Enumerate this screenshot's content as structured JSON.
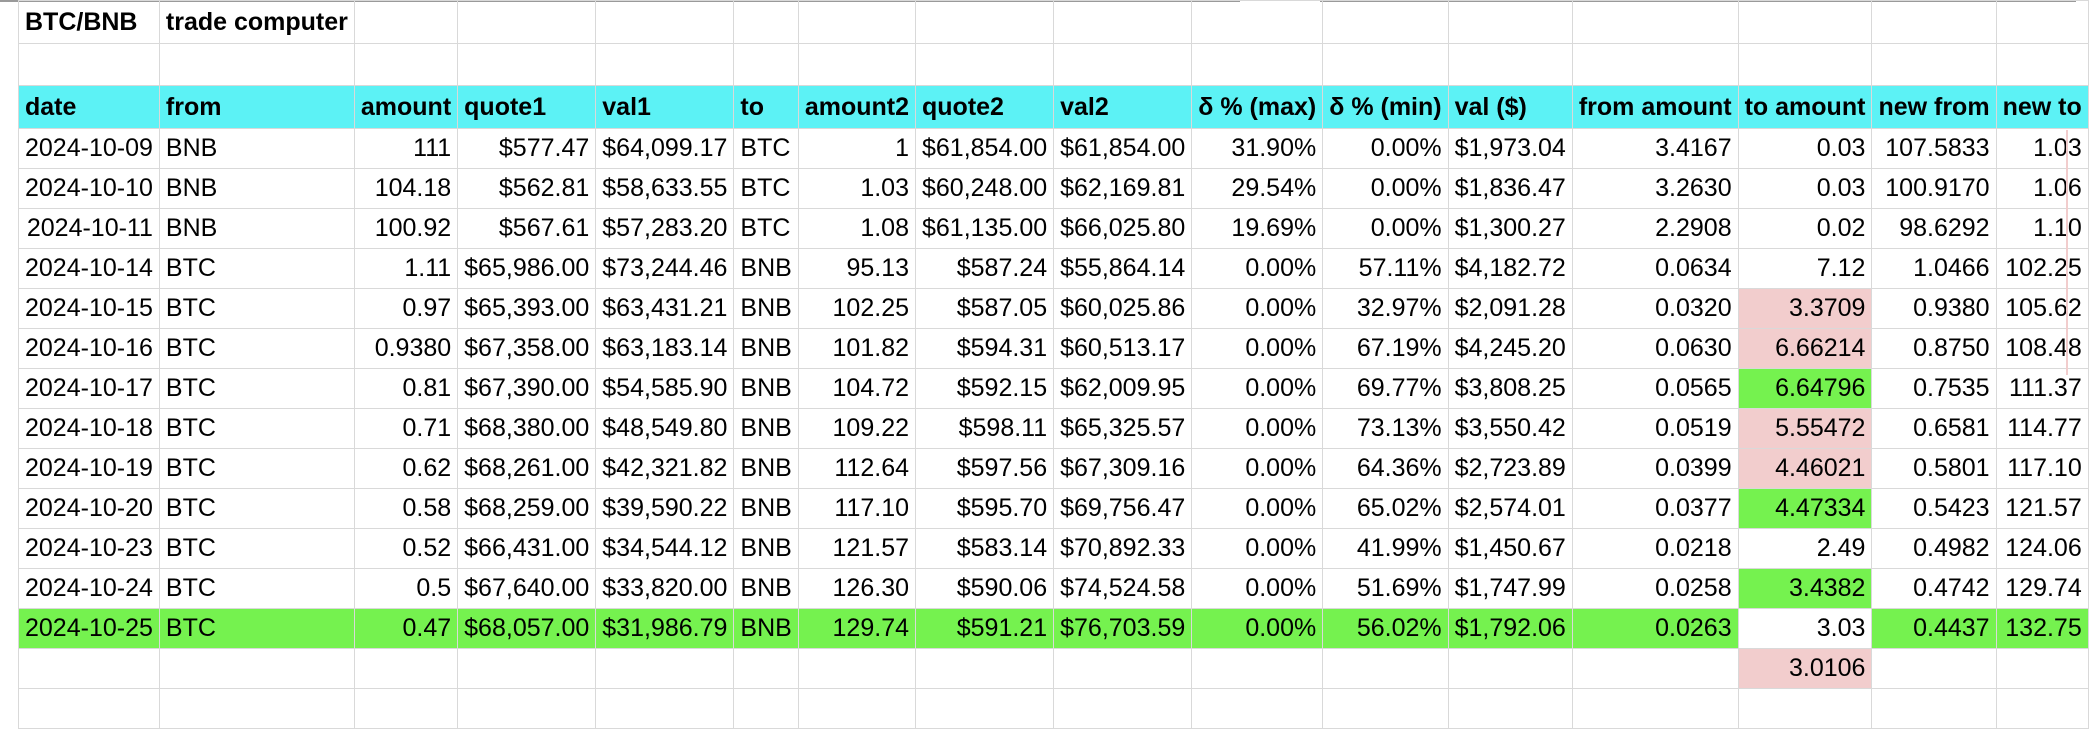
{
  "sheet": {
    "title_cells": [
      "BTC/BNB",
      "trade computer"
    ],
    "columns": [
      "date",
      "from",
      "amount",
      "quote1",
      "val1",
      "to",
      "amount2",
      "quote2",
      "val2",
      "δ % (max)",
      "δ % (min)",
      "val ($)",
      "from amount",
      "to amount",
      "new from",
      "new to"
    ],
    "rows": [
      [
        "2024-10-09",
        "BNB",
        "111",
        "$577.47",
        "$64,099.17",
        "BTC",
        "1",
        "$61,854.00",
        "$61,854.00",
        "31.90%",
        "0.00%",
        "$1,973.04",
        "3.4167",
        "0.03",
        "107.5833",
        "1.03"
      ],
      [
        "2024-10-10",
        "BNB",
        "104.18",
        "$562.81",
        "$58,633.55",
        "BTC",
        "1.03",
        "$60,248.00",
        "$62,169.81",
        "29.54%",
        "0.00%",
        "$1,836.47",
        "3.2630",
        "0.03",
        "100.9170",
        "1.06"
      ],
      [
        "2024-10-11",
        "BNB",
        "100.92",
        "$567.61",
        "$57,283.20",
        "BTC",
        "1.08",
        "$61,135.00",
        "$66,025.80",
        "19.69%",
        "0.00%",
        "$1,300.27",
        "2.2908",
        "0.02",
        "98.6292",
        "1.10"
      ],
      [
        "2024-10-14",
        "BTC",
        "1.11",
        "$65,986.00",
        "$73,244.46",
        "BNB",
        "95.13",
        "$587.24",
        "$55,864.14",
        "0.00%",
        "57.11%",
        "$4,182.72",
        "0.0634",
        "7.12",
        "1.0466",
        "102.25"
      ],
      [
        "2024-10-15",
        "BTC",
        "0.97",
        "$65,393.00",
        "$63,431.21",
        "BNB",
        "102.25",
        "$587.05",
        "$60,025.86",
        "0.00%",
        "32.97%",
        "$2,091.28",
        "0.0320",
        "3.3709",
        "0.9380",
        "105.62"
      ],
      [
        "2024-10-16",
        "BTC",
        "0.9380",
        "$67,358.00",
        "$63,183.14",
        "BNB",
        "101.82",
        "$594.31",
        "$60,513.17",
        "0.00%",
        "67.19%",
        "$4,245.20",
        "0.0630",
        "6.66214",
        "0.8750",
        "108.48"
      ],
      [
        "2024-10-17",
        "BTC",
        "0.81",
        "$67,390.00",
        "$54,585.90",
        "BNB",
        "104.72",
        "$592.15",
        "$62,009.95",
        "0.00%",
        "69.77%",
        "$3,808.25",
        "0.0565",
        "6.64796",
        "0.7535",
        "111.37"
      ],
      [
        "2024-10-18",
        "BTC",
        "0.71",
        "$68,380.00",
        "$48,549.80",
        "BNB",
        "109.22",
        "$598.11",
        "$65,325.57",
        "0.00%",
        "73.13%",
        "$3,550.42",
        "0.0519",
        "5.55472",
        "0.6581",
        "114.77"
      ],
      [
        "2024-10-19",
        "BTC",
        "0.62",
        "$68,261.00",
        "$42,321.82",
        "BNB",
        "112.64",
        "$597.56",
        "$67,309.16",
        "0.00%",
        "64.36%",
        "$2,723.89",
        "0.0399",
        "4.46021",
        "0.5801",
        "117.10"
      ],
      [
        "2024-10-20",
        "BTC",
        "0.58",
        "$68,259.00",
        "$39,590.22",
        "BNB",
        "117.10",
        "$595.70",
        "$69,756.47",
        "0.00%",
        "65.02%",
        "$2,574.01",
        "0.0377",
        "4.47334",
        "0.5423",
        "121.57"
      ],
      [
        "2024-10-23",
        "BTC",
        "0.52",
        "$66,431.00",
        "$34,544.12",
        "BNB",
        "121.57",
        "$583.14",
        "$70,892.33",
        "0.00%",
        "41.99%",
        "$1,450.67",
        "0.0218",
        "2.49",
        "0.4982",
        "124.06"
      ],
      [
        "2024-10-24",
        "BTC",
        "0.5",
        "$67,640.00",
        "$33,820.00",
        "BNB",
        "126.30",
        "$590.06",
        "$74,524.58",
        "0.00%",
        "51.69%",
        "$1,747.99",
        "0.0258",
        "3.4382",
        "0.4742",
        "129.74"
      ],
      [
        "2024-10-25",
        "BTC",
        "0.47",
        "$68,057.00",
        "$31,986.79",
        "BNB",
        "129.74",
        "$591.21",
        "$76,703.59",
        "0.00%",
        "56.02%",
        "$1,792.06",
        "0.0263",
        "3.03",
        "0.4437",
        "132.75"
      ]
    ],
    "extra_value": "3.0106",
    "colors": {
      "header": "#5cf2f5",
      "highlight_row": "#75f24f",
      "pink_cell": "#f2cdcd",
      "green_cell": "#75f24f",
      "grid_line": "#d9d9d9"
    },
    "cell_fills": {
      "4": "pink",
      "5": "pink",
      "6": "green",
      "7": "pink",
      "8": "pink",
      "9": "green",
      "11": "green",
      "12": "white"
    },
    "highlighted_row": 12
  }
}
